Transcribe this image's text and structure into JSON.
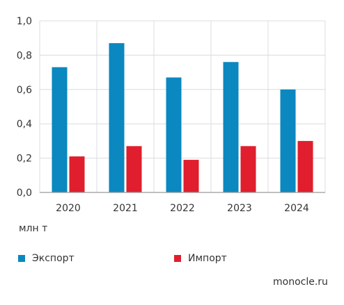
{
  "chart_data": {
    "type": "bar",
    "categories": [
      "2020",
      "2021",
      "2022",
      "2023",
      "2024"
    ],
    "series": [
      {
        "name": "Экспорт",
        "values": [
          0.73,
          0.87,
          0.67,
          0.76,
          0.6
        ],
        "color": "#0a88bf"
      },
      {
        "name": "Импорт",
        "values": [
          0.21,
          0.27,
          0.19,
          0.27,
          0.3
        ],
        "color": "#e01e2d"
      }
    ],
    "ylim": [
      0,
      1.0
    ],
    "yticks": [
      "0,0",
      "0,2",
      "0,4",
      "0,6",
      "0,8",
      "1,0"
    ],
    "ylabel": "млн т",
    "grid": true,
    "legend_position": "bottom"
  },
  "watermark": "monocle.ru"
}
